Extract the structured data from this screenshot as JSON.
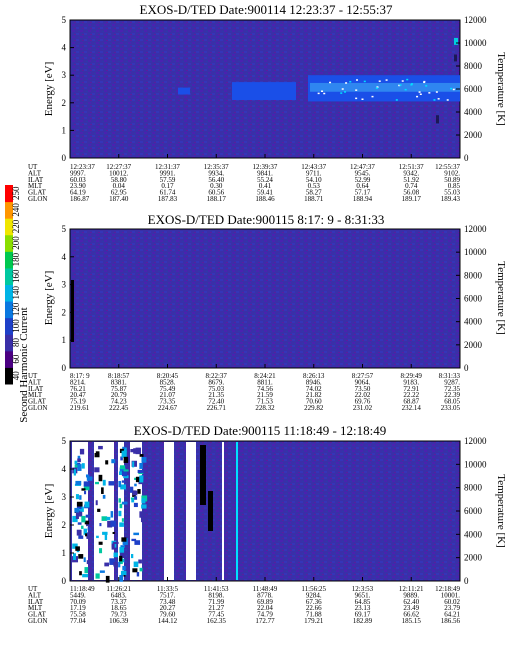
{
  "figure": {
    "ephemeris_labels": [
      "UT",
      "ALT",
      "ILAT",
      "MLT",
      "GLAT",
      "GLON"
    ]
  },
  "colorbar": {
    "label": "Second Harmonic Current",
    "ticks": [
      "40",
      "60",
      "80",
      "100",
      "120",
      "140",
      "160",
      "180",
      "200",
      "220",
      "240",
      "250"
    ]
  },
  "chart_data": [
    {
      "type": "heatmap",
      "title": "EXOS-D/TED   Date:900114   12:23:37 - 12:55:37",
      "ylabel": "Energy [eV]",
      "y2label": "Temperature [K]",
      "ylim": [
        0,
        5
      ],
      "yticks": [
        "0",
        "1",
        "2",
        "3",
        "4",
        "5"
      ],
      "y2lim": [
        0,
        12000
      ],
      "y2ticks": [
        "0",
        "2000",
        "4000",
        "6000",
        "8000",
        "10000",
        "12000"
      ],
      "ephemeris": {
        "UT": [
          "12:23:37",
          "12:27:37",
          "12:31:37",
          "12:35:37",
          "12:39:37",
          "12:43:37",
          "12:47:37",
          "12:51:37",
          "12:55:37"
        ],
        "ALT": [
          "9997.",
          "10012.",
          "9991.",
          "9934.",
          "9841.",
          "9711.",
          "9545.",
          "9342.",
          "9102."
        ],
        "ILAT": [
          "60.03",
          "58.80",
          "57.59",
          "56.40",
          "55.24",
          "54.10",
          "52.99",
          "51.92",
          "50.89"
        ],
        "MLT": [
          "23.90",
          "0.04",
          "0.17",
          "0.30",
          "0.41",
          "0.53",
          "0.64",
          "0.74",
          "0.85"
        ],
        "GLAT": [
          "64.19",
          "62.95",
          "61.74",
          "60.56",
          "59.41",
          "58.27",
          "57.17",
          "56.08",
          "55.03"
        ],
        "GLON": [
          "186.87",
          "187.40",
          "187.83",
          "188.17",
          "188.46",
          "188.71",
          "188.94",
          "189.17",
          "189.43"
        ]
      }
    },
    {
      "type": "heatmap",
      "title": "EXOS-D/TED   Date:900115   8:17: 9 - 8:31:33",
      "ylabel": "Energy [eV]",
      "y2label": "Temperature [K]",
      "ylim": [
        0,
        5
      ],
      "yticks": [
        "0",
        "1",
        "2",
        "3",
        "4",
        "5"
      ],
      "y2lim": [
        0,
        12000
      ],
      "y2ticks": [
        "0",
        "2000",
        "4000",
        "6000",
        "8000",
        "10000",
        "12000"
      ],
      "ephemeris": {
        "UT": [
          "8:17: 9",
          "8:18:57",
          "8:20:45",
          "8:22:37",
          "8:24:21",
          "8:26:13",
          "8:27:57",
          "8:29:49",
          "8:31:33"
        ],
        "ALT": [
          "8214.",
          "8381.",
          "8528.",
          "8679.",
          "8811.",
          "8946.",
          "9064.",
          "9183.",
          "9287."
        ],
        "ILAT": [
          "76.21",
          "75.87",
          "75.49",
          "75.03",
          "74.56",
          "74.02",
          "73.50",
          "72.91",
          "72.35"
        ],
        "MLT": [
          "20.47",
          "20.79",
          "21.07",
          "21.35",
          "21.59",
          "21.82",
          "22.02",
          "22.22",
          "22.39"
        ],
        "GLAT": [
          "75.19",
          "74.23",
          "73.35",
          "72.40",
          "71.53",
          "70.60",
          "69.76",
          "68.87",
          "68.05"
        ],
        "GLON": [
          "219.61",
          "222.45",
          "224.67",
          "226.71",
          "228.32",
          "229.82",
          "231.02",
          "232.14",
          "233.05"
        ]
      }
    },
    {
      "type": "heatmap",
      "title": "EXOS-D/TED   Date:900115   11:18:49 - 12:18:49",
      "ylabel": "Energy [eV]",
      "y2label": "Temperature [K]",
      "ylim": [
        0,
        5
      ],
      "yticks": [
        "0",
        "1",
        "2",
        "3",
        "4",
        "5"
      ],
      "y2lim": [
        0,
        12000
      ],
      "y2ticks": [
        "0",
        "2000",
        "4000",
        "6000",
        "8000",
        "10000",
        "12000"
      ],
      "ephemeris": {
        "UT": [
          "11:18:49",
          "11:26:21",
          "11:33:5",
          "11:41:53",
          "11:48:49",
          "11:56:25",
          "12:3:53",
          "12:11:21",
          "12:18:49"
        ],
        "ALT": [
          "5449.",
          "6483.",
          "7517.",
          "8198.",
          "8778.",
          "9284.",
          "9651.",
          "9889.",
          "10001."
        ],
        "ILAT": [
          "70.09",
          "73.37",
          "73.48",
          "71.99",
          "69.89",
          "67.36",
          "64.85",
          "62.40",
          "60.02"
        ],
        "MLT": [
          "17.19",
          "18.65",
          "20.27",
          "21.27",
          "22.04",
          "22.66",
          "23.13",
          "23.49",
          "23.79"
        ],
        "GLAT": [
          "75.58",
          "79.73",
          "79.60",
          "77.45",
          "74.79",
          "71.88",
          "69.17",
          "66.62",
          "64.21"
        ],
        "GLON": [
          "77.04",
          "106.39",
          "144.12",
          "162.35",
          "172.77",
          "179.21",
          "182.89",
          "185.15",
          "186.56"
        ]
      }
    }
  ]
}
